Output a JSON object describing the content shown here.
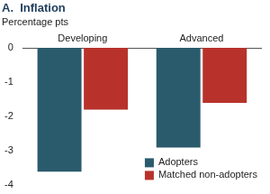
{
  "chart_data": {
    "type": "bar",
    "title": "A.  Inflation",
    "subtitle": "Percentage pts",
    "categories": [
      "Developing",
      "Advanced"
    ],
    "series": [
      {
        "name": "Adopters",
        "color": "#2a5b6c",
        "values": [
          -3.6,
          -2.9
        ]
      },
      {
        "name": "Matched non-adopters",
        "color": "#b8322b",
        "values": [
          -1.8,
          -1.6
        ]
      }
    ],
    "ylim": [
      -4,
      0
    ],
    "yticks": [
      -4,
      -3,
      -2,
      -1,
      0
    ],
    "grid": false,
    "legend": "lower right"
  }
}
